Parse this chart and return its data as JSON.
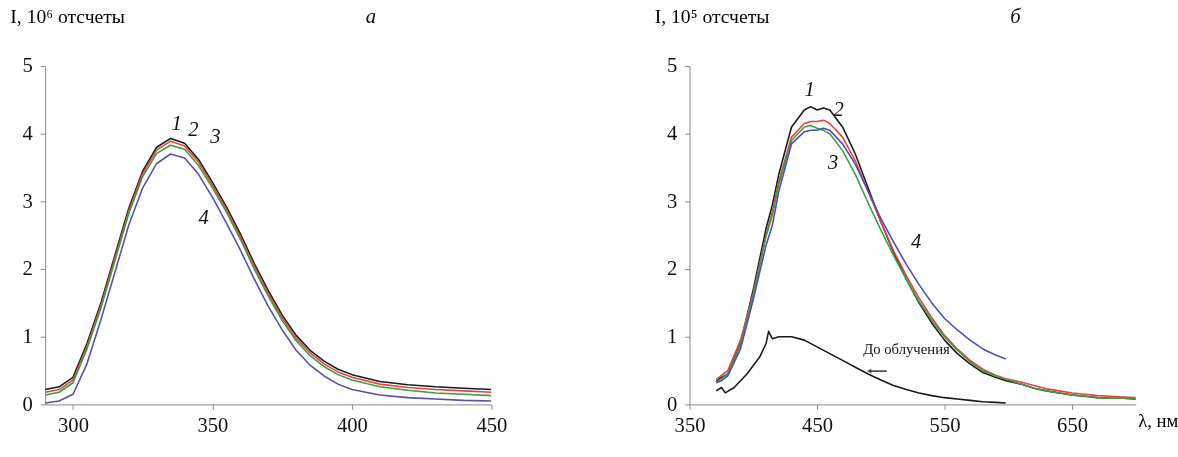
{
  "chart_data": [
    {
      "type": "line",
      "title": "а",
      "ylabel": "I, 10⁶ отсчеты",
      "xlim": [
        290,
        450
      ],
      "xticks": [
        300,
        350,
        400,
        450
      ],
      "ylim": [
        0,
        5
      ],
      "yticks": [
        0,
        1,
        2,
        3,
        4,
        5
      ],
      "grid": false,
      "x": [
        290,
        295,
        300,
        305,
        310,
        315,
        320,
        325,
        330,
        335,
        340,
        345,
        350,
        355,
        360,
        365,
        370,
        375,
        380,
        385,
        390,
        395,
        400,
        410,
        420,
        430,
        440,
        450
      ],
      "series": [
        {
          "name": "1",
          "color": "#1a1a1a",
          "values": [
            0.22,
            0.26,
            0.4,
            0.9,
            1.5,
            2.2,
            2.9,
            3.45,
            3.8,
            3.93,
            3.86,
            3.62,
            3.28,
            2.92,
            2.52,
            2.08,
            1.68,
            1.32,
            1.02,
            0.8,
            0.64,
            0.52,
            0.44,
            0.34,
            0.29,
            0.26,
            0.24,
            0.22
          ]
        },
        {
          "name": "2",
          "color": "#e0473a",
          "values": [
            0.18,
            0.22,
            0.36,
            0.86,
            1.46,
            2.16,
            2.86,
            3.41,
            3.76,
            3.89,
            3.82,
            3.58,
            3.24,
            2.88,
            2.48,
            2.04,
            1.64,
            1.28,
            0.98,
            0.76,
            0.6,
            0.48,
            0.4,
            0.3,
            0.25,
            0.22,
            0.2,
            0.18
          ]
        },
        {
          "name": "3",
          "color": "#3f9a4a",
          "values": [
            0.14,
            0.18,
            0.32,
            0.82,
            1.42,
            2.12,
            2.82,
            3.37,
            3.71,
            3.83,
            3.77,
            3.53,
            3.2,
            2.84,
            2.44,
            2.0,
            1.6,
            1.24,
            0.94,
            0.72,
            0.56,
            0.44,
            0.36,
            0.26,
            0.21,
            0.17,
            0.15,
            0.13
          ]
        },
        {
          "name": "4",
          "color": "#5b4ea3",
          "values": [
            0.02,
            0.05,
            0.15,
            0.6,
            1.25,
            1.95,
            2.65,
            3.2,
            3.56,
            3.7,
            3.64,
            3.4,
            3.06,
            2.68,
            2.28,
            1.85,
            1.45,
            1.1,
            0.8,
            0.58,
            0.42,
            0.3,
            0.22,
            0.14,
            0.1,
            0.08,
            0.06,
            0.05
          ]
        }
      ]
    },
    {
      "type": "line",
      "title": "б",
      "xlabel": "λ, нм",
      "ylabel": "I, 10⁵ отсчеты",
      "xlim": [
        350,
        700
      ],
      "xticks": [
        350,
        450,
        550,
        650
      ],
      "ylim": [
        0,
        5
      ],
      "yticks": [
        0,
        1,
        2,
        3,
        4,
        5
      ],
      "grid": false,
      "x": [
        371,
        375,
        380,
        390,
        400,
        410,
        415,
        420,
        430,
        440,
        445,
        450,
        455,
        460,
        470,
        480,
        490,
        500,
        510,
        520,
        530,
        540,
        550,
        560,
        570,
        580,
        590,
        598,
        610,
        620,
        630,
        640,
        650,
        660,
        670,
        680,
        690,
        700
      ],
      "series": [
        {
          "name": "1",
          "color": "#1a1a1a",
          "values": [
            0.35,
            0.4,
            0.45,
            0.9,
            1.7,
            2.6,
            2.95,
            3.4,
            4.1,
            4.35,
            4.4,
            4.35,
            4.38,
            4.35,
            4.1,
            3.7,
            3.2,
            2.7,
            2.25,
            1.85,
            1.5,
            1.2,
            0.95,
            0.75,
            0.6,
            0.47,
            0.4,
            0.35,
            0.3,
            0.24,
            0.2,
            0.17,
            0.14,
            0.12,
            0.1,
            0.09,
            0.09,
            0.08
          ]
        },
        {
          "name": "2",
          "color": "#e0473a",
          "values": [
            0.37,
            0.43,
            0.5,
            0.95,
            1.65,
            2.5,
            2.85,
            3.3,
            3.95,
            4.15,
            4.18,
            4.18,
            4.2,
            4.15,
            3.95,
            3.6,
            3.15,
            2.7,
            2.27,
            1.9,
            1.57,
            1.28,
            1.02,
            0.82,
            0.65,
            0.52,
            0.43,
            0.38,
            0.33,
            0.28,
            0.23,
            0.2,
            0.17,
            0.15,
            0.13,
            0.12,
            0.11,
            0.1
          ]
        },
        {
          "name": "3",
          "color": "#3f9a4a",
          "values": [
            0.33,
            0.38,
            0.45,
            0.88,
            1.62,
            2.48,
            2.8,
            3.25,
            3.9,
            4.1,
            4.12,
            4.08,
            4.05,
            4.0,
            3.75,
            3.4,
            2.98,
            2.58,
            2.2,
            1.85,
            1.52,
            1.24,
            1.0,
            0.8,
            0.63,
            0.5,
            0.42,
            0.37,
            0.3,
            0.24,
            0.2,
            0.17,
            0.14,
            0.12,
            0.1,
            0.09,
            0.09,
            0.08
          ]
        },
        {
          "name": "4",
          "color": "#4a4fb0",
          "x": [
            371,
            375,
            380,
            390,
            400,
            410,
            415,
            420,
            430,
            440,
            445,
            450,
            455,
            460,
            470,
            480,
            490,
            500,
            510,
            520,
            530,
            540,
            550,
            560,
            570,
            580,
            590,
            598
          ],
          "values": [
            0.32,
            0.35,
            0.42,
            0.82,
            1.55,
            2.35,
            2.65,
            3.15,
            3.85,
            4.03,
            4.05,
            4.05,
            4.08,
            4.05,
            3.85,
            3.55,
            3.15,
            2.75,
            2.4,
            2.07,
            1.77,
            1.5,
            1.27,
            1.1,
            0.95,
            0.82,
            0.73,
            0.67
          ]
        },
        {
          "color": "#1a1a1a",
          "x": [
            371,
            375,
            378,
            385,
            395,
            405,
            410,
            412,
            415,
            420,
            430,
            440,
            450,
            460,
            470,
            480,
            490,
            500,
            510,
            520,
            530,
            540,
            550,
            560,
            570,
            580,
            590,
            598
          ],
          "values": [
            0.2,
            0.25,
            0.17,
            0.25,
            0.45,
            0.7,
            0.9,
            1.08,
            0.97,
            1.0,
            1.0,
            0.95,
            0.85,
            0.75,
            0.65,
            0.55,
            0.45,
            0.36,
            0.28,
            0.22,
            0.17,
            0.13,
            0.1,
            0.08,
            0.06,
            0.04,
            0.03,
            0.02
          ]
        }
      ],
      "annotations": [
        "До облучения"
      ]
    }
  ]
}
